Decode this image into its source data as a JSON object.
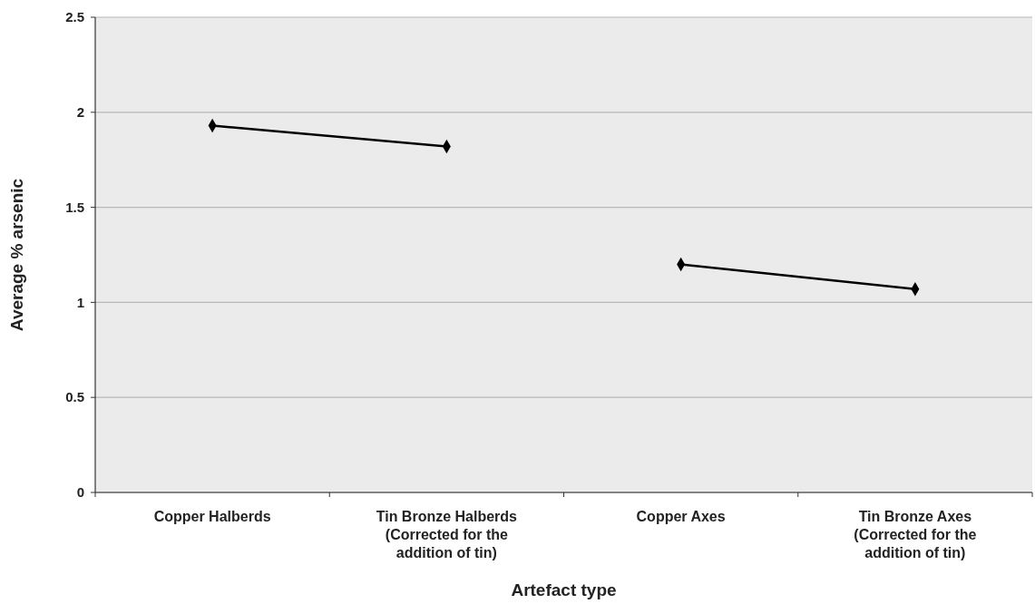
{
  "chart_data": {
    "type": "line",
    "xlabel": "Artefact type",
    "ylabel": "Average % arsenic",
    "categories": [
      "Copper Halberds",
      "Tin Bronze Halberds (Corrected for the addition of tin)",
      "Copper Axes",
      "Tin Bronze Axes (Corrected for the addition of tin)"
    ],
    "series": [
      {
        "color": "#000000",
        "values": [
          1.93,
          1.82,
          null,
          null
        ]
      },
      {
        "color": "#000000",
        "values": [
          null,
          null,
          1.2,
          1.07
        ]
      }
    ],
    "ylim": [
      0,
      2.5
    ],
    "yticks": [
      0,
      0.5,
      1,
      1.5,
      2,
      2.5
    ],
    "grid": "y",
    "marker": "diamond",
    "line_style": "solid"
  }
}
